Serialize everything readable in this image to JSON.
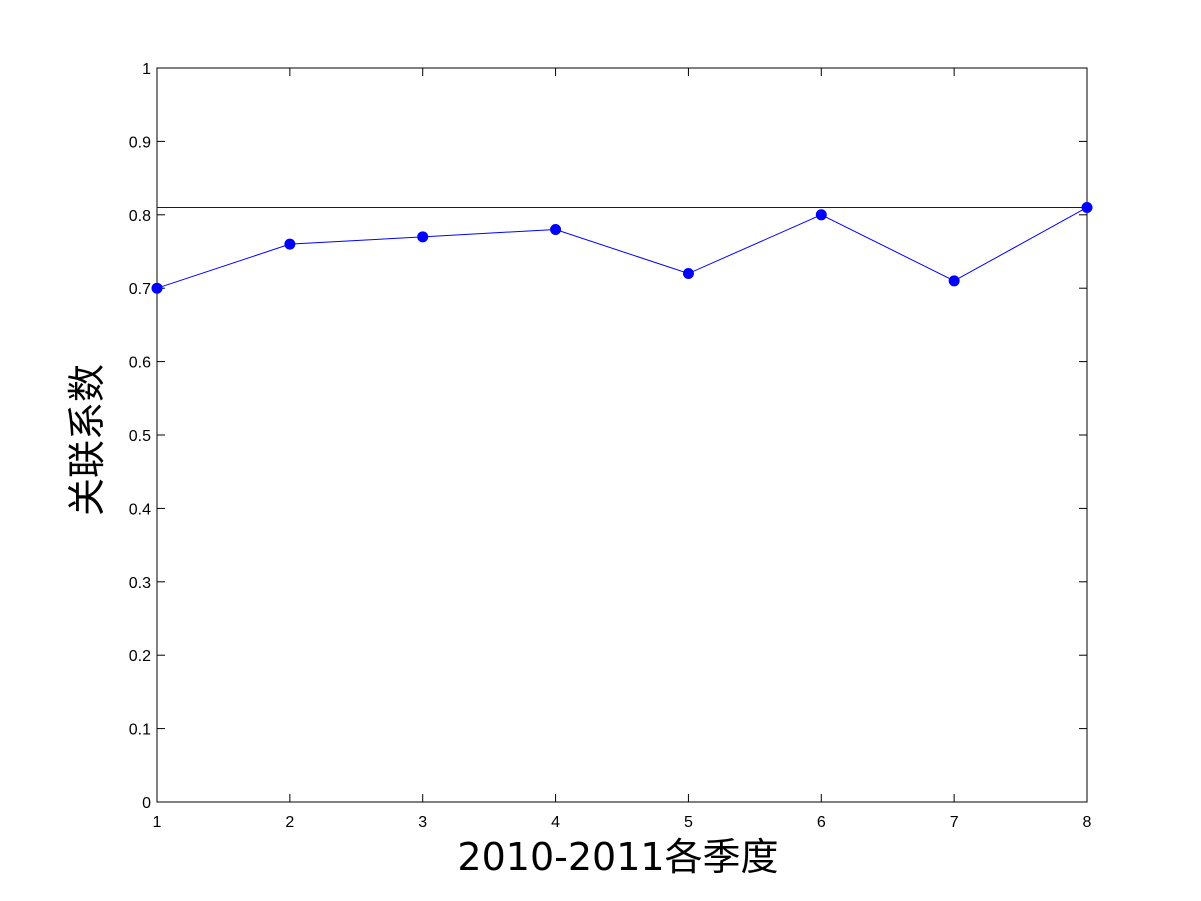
{
  "chart_data": {
    "type": "line",
    "title": "",
    "xlabel": "2010-2011各季度",
    "ylabel": "关联系数",
    "xlim": [
      1,
      8
    ],
    "ylim": [
      0,
      1
    ],
    "x_ticks": [
      "1",
      "2",
      "3",
      "4",
      "5",
      "6",
      "7",
      "8"
    ],
    "y_ticks": [
      "0",
      "0.1",
      "0.2",
      "0.3",
      "0.4",
      "0.5",
      "0.6",
      "0.7",
      "0.8",
      "0.9",
      "1"
    ],
    "grid": false,
    "series": [
      {
        "name": "关联系数",
        "marker": "circle",
        "color": "#0000ff",
        "x": [
          1,
          2,
          3,
          4,
          5,
          6,
          7,
          8
        ],
        "values": [
          0.7,
          0.76,
          0.77,
          0.78,
          0.72,
          0.8,
          0.71,
          0.81
        ]
      }
    ],
    "reference_lines": [
      {
        "orientation": "horizontal",
        "y": 0.81,
        "color": "#0000ff"
      }
    ],
    "colors": {
      "axis": "#000000",
      "series": "#0000ff",
      "background": "#ffffff"
    }
  }
}
